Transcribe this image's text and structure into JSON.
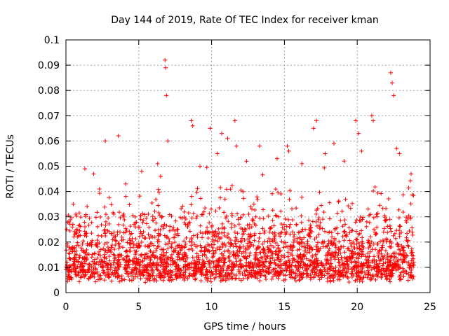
{
  "chart_data": {
    "type": "scatter",
    "title": "Day 144 of 2019, Rate Of TEC Index for receiver kman",
    "xlabel": "GPS time / hours",
    "ylabel": "ROTI / TECUs",
    "xlim": [
      0,
      25
    ],
    "ylim": [
      0,
      0.1
    ],
    "xticks": [
      0,
      5,
      10,
      15,
      20,
      25
    ],
    "yticks": [
      0,
      0.01,
      0.02,
      0.03,
      0.04,
      0.05,
      0.06,
      0.07,
      0.08,
      0.09,
      0.1
    ],
    "xtick_labels": [
      "0",
      "5",
      "10",
      "15",
      "20",
      "25"
    ],
    "ytick_labels": [
      "0",
      "0.01",
      "0.02",
      "0.03",
      "0.04",
      "0.05",
      "0.06",
      "0.07",
      "0.08",
      "0.09",
      "0.1"
    ],
    "grid": true,
    "marker": "+",
    "color": "#ff0000",
    "series": [
      {
        "name": "ROTI",
        "x": [
          0.2,
          0.5,
          1.3,
          1.9,
          2.7,
          3.6,
          5.2,
          6.3,
          6.5,
          6.8,
          6.85,
          6.9,
          7.0,
          8.6,
          8.7,
          9.2,
          9.9,
          10.4,
          10.7,
          11.1,
          11.6,
          11.7,
          12.4,
          13.3,
          14.5,
          15.2,
          15.3,
          16.2,
          17.0,
          17.2,
          17.8,
          18.4,
          19.1,
          19.9,
          20.1,
          20.3,
          21.0,
          21.1,
          22.3,
          22.4,
          22.5,
          22.7,
          22.9,
          23.7
        ],
        "y": [
          0.028,
          0.035,
          0.049,
          0.047,
          0.06,
          0.062,
          0.048,
          0.051,
          0.046,
          0.092,
          0.089,
          0.078,
          0.06,
          0.068,
          0.066,
          0.05,
          0.065,
          0.055,
          0.063,
          0.061,
          0.068,
          0.058,
          0.052,
          0.058,
          0.053,
          0.058,
          0.056,
          0.051,
          0.065,
          0.068,
          0.055,
          0.059,
          0.052,
          0.068,
          0.063,
          0.056,
          0.07,
          0.068,
          0.087,
          0.083,
          0.078,
          0.057,
          0.055,
          0.047
        ]
      }
    ]
  }
}
